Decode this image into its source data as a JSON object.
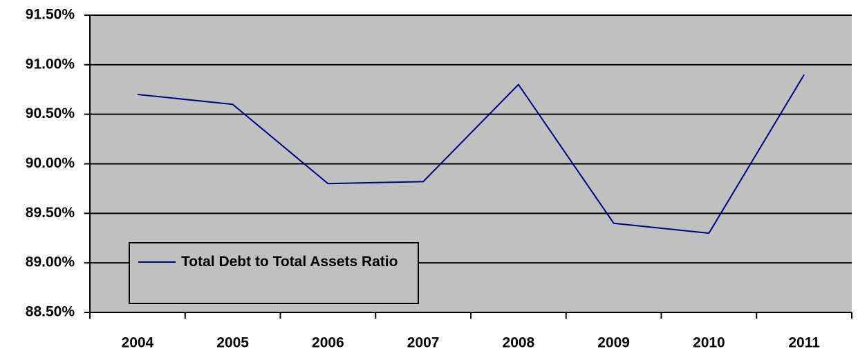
{
  "chart_data": {
    "type": "line",
    "categories": [
      "2004",
      "2005",
      "2006",
      "2007",
      "2008",
      "2009",
      "2010",
      "2011"
    ],
    "series": [
      {
        "name": "Total Debt to Total Assets Ratio",
        "color": "#000080",
        "values": [
          90.7,
          90.6,
          89.8,
          89.82,
          90.8,
          89.4,
          89.3,
          90.9
        ]
      }
    ],
    "ylim": [
      88.5,
      91.5
    ],
    "yticks": [
      {
        "value": 88.5,
        "label": "88.50%"
      },
      {
        "value": 89.0,
        "label": "89.00%"
      },
      {
        "value": 89.5,
        "label": "89.50%"
      },
      {
        "value": 90.0,
        "label": "90.00%"
      },
      {
        "value": 90.5,
        "label": "90.50%"
      },
      {
        "value": 91.0,
        "label": "91.00%"
      },
      {
        "value": 91.5,
        "label": "91.50%"
      }
    ],
    "grid": true,
    "plot_background": "#c0c0c0",
    "legend": "lower left"
  }
}
